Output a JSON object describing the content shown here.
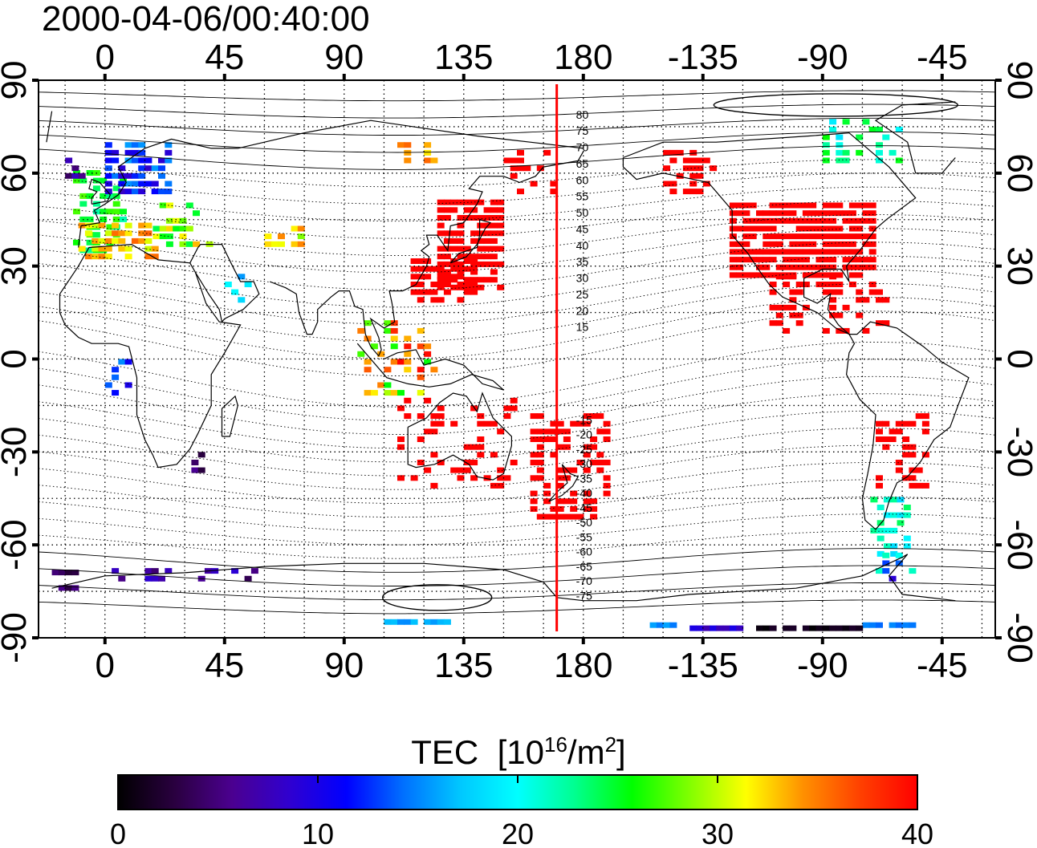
{
  "title": "2000-04-06/00:40:00",
  "map": {
    "top_lon_ticks": [
      "0",
      "45",
      "90",
      "135",
      "180",
      "-135",
      "-90",
      "-45"
    ],
    "bottom_lon_ticks": [
      "0",
      "45",
      "90",
      "135",
      "180",
      "-135",
      "-90",
      "-45"
    ],
    "left_lat_ticks": [
      "90",
      "60",
      "30",
      "0",
      "-30",
      "-60",
      "-90"
    ],
    "right_lat_ticks": [
      "90",
      "60",
      "30",
      "0",
      "-30",
      "-60",
      "-90"
    ],
    "lon_range": [
      -25,
      335
    ],
    "lat_range": [
      -90,
      90
    ],
    "grid": "dotted 15 deg",
    "meridian_marker_lon": 170,
    "meridian_marker_color": "#ff0000",
    "contour_labels": [
      "80",
      "75",
      "70",
      "65",
      "60",
      "55",
      "50",
      "45",
      "40",
      "35",
      "30",
      "25",
      "20",
      "15",
      "-15",
      "-20",
      "-25",
      "-30",
      "-35",
      "-40",
      "-45",
      "-50",
      "-55",
      "-60",
      "-65",
      "-70",
      "-75"
    ]
  },
  "colorbar": {
    "label": "TEC",
    "unit_prefix": "[10",
    "unit_exp": "16",
    "unit_mid": "/m",
    "unit_exp2": "2",
    "unit_suffix": "]",
    "min": 0,
    "max": 40,
    "tick_labels": [
      "0",
      "10",
      "20",
      "30",
      "40"
    ],
    "colors": [
      "#000000",
      "#2a0040",
      "#4b0090",
      "#3000d0",
      "#0000ff",
      "#0070ff",
      "#00c8ff",
      "#00ffff",
      "#00ff90",
      "#00ff00",
      "#80ff00",
      "#ffff00",
      "#ff9000",
      "#ff4000",
      "#ff0000"
    ]
  }
}
